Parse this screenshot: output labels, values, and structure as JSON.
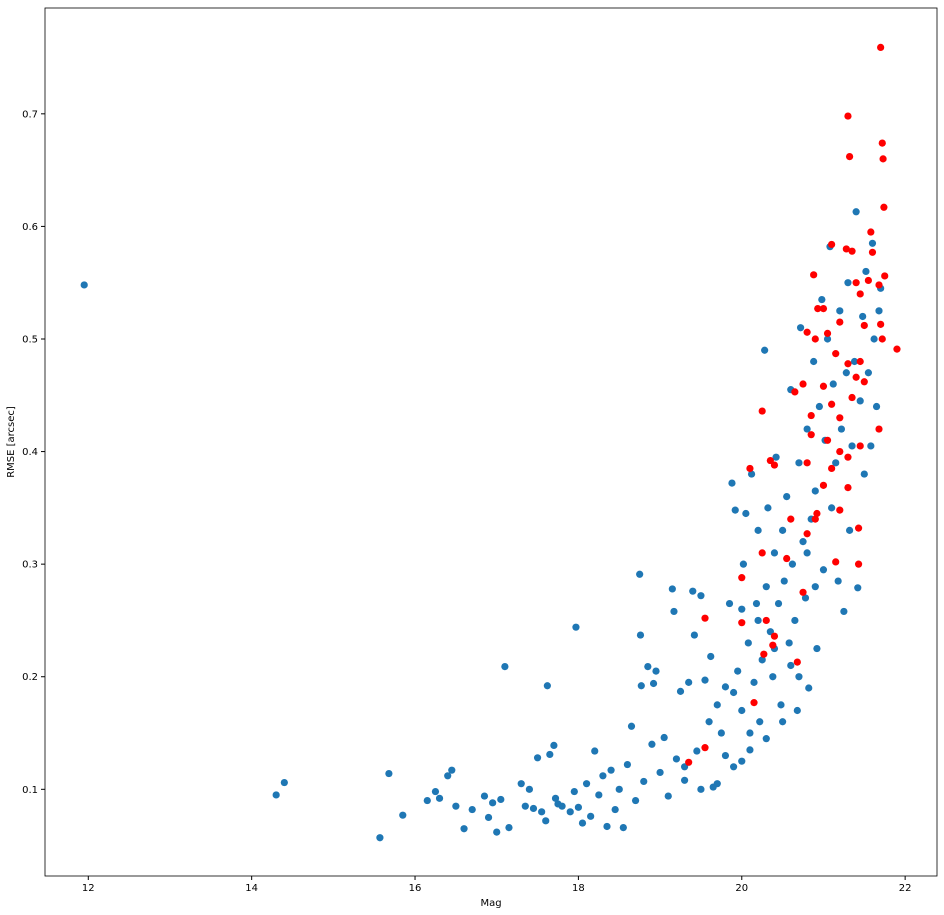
{
  "chart_data": {
    "type": "scatter",
    "xlabel": "Mag",
    "ylabel": "RMSE [arcsec]",
    "xlim": [
      11.47,
      22.39
    ],
    "ylim": [
      0.023,
      0.794
    ],
    "xticks": [
      12,
      14,
      16,
      18,
      20,
      22
    ],
    "yticks": [
      0.1,
      0.2,
      0.3,
      0.4,
      0.5,
      0.6,
      0.7
    ],
    "series": [
      {
        "color": "#1f77b4",
        "x": [
          11.95,
          14.3,
          14.4,
          15.57,
          15.68,
          15.85,
          16.15,
          16.25,
          16.3,
          16.4,
          16.45,
          16.5,
          16.6,
          16.7,
          16.85,
          16.9,
          16.95,
          17.0,
          17.05,
          17.1,
          17.15,
          17.3,
          17.35,
          17.4,
          17.45,
          17.5,
          17.55,
          17.6,
          17.62,
          17.65,
          17.7,
          17.72,
          17.75,
          17.8,
          17.9,
          17.95,
          17.97,
          18.0,
          18.05,
          18.1,
          18.15,
          18.2,
          18.25,
          18.3,
          18.35,
          18.4,
          18.45,
          18.5,
          18.55,
          18.6,
          18.65,
          18.7,
          18.75,
          18.76,
          18.77,
          18.8,
          18.85,
          18.9,
          18.92,
          18.95,
          19.0,
          19.05,
          19.1,
          19.15,
          19.17,
          19.2,
          19.25,
          19.3,
          19.35,
          19.4,
          19.42,
          19.45,
          19.5,
          19.55,
          19.6,
          19.62,
          19.65,
          19.7,
          19.75,
          19.8,
          19.85,
          19.88,
          19.9,
          19.92,
          19.95,
          20.0,
          20.02,
          20.05,
          20.08,
          20.1,
          20.12,
          20.15,
          20.18,
          20.2,
          20.22,
          20.25,
          20.28,
          20.3,
          20.32,
          20.35,
          20.38,
          20.4,
          20.42,
          20.45,
          20.48,
          20.5,
          20.52,
          20.55,
          20.58,
          20.6,
          20.62,
          20.65,
          20.68,
          20.7,
          20.72,
          20.75,
          20.78,
          20.8,
          20.82,
          20.85,
          20.88,
          20.9,
          20.92,
          20.95,
          20.98,
          21.0,
          21.02,
          21.05,
          21.08,
          21.1,
          21.12,
          21.15,
          21.18,
          21.2,
          21.22,
          21.25,
          21.28,
          21.3,
          21.32,
          21.35,
          21.38,
          21.4,
          21.42,
          21.45,
          21.48,
          21.5,
          21.52,
          21.55,
          21.58,
          21.6,
          21.62,
          21.65,
          21.68,
          21.7,
          19.8,
          19.9,
          20.0,
          20.1,
          19.7,
          19.5,
          19.3,
          20.3,
          20.5,
          20.7,
          20.6,
          20.4,
          20.2,
          20.0,
          20.9,
          20.8
        ],
        "y": [
          0.548,
          0.095,
          0.106,
          0.057,
          0.114,
          0.077,
          0.09,
          0.098,
          0.092,
          0.112,
          0.117,
          0.085,
          0.065,
          0.082,
          0.094,
          0.075,
          0.088,
          0.062,
          0.091,
          0.209,
          0.066,
          0.105,
          0.085,
          0.1,
          0.083,
          0.128,
          0.08,
          0.072,
          0.192,
          0.131,
          0.139,
          0.092,
          0.087,
          0.085,
          0.08,
          0.098,
          0.244,
          0.084,
          0.07,
          0.105,
          0.076,
          0.134,
          0.095,
          0.112,
          0.067,
          0.117,
          0.082,
          0.1,
          0.066,
          0.122,
          0.156,
          0.09,
          0.291,
          0.237,
          0.192,
          0.107,
          0.209,
          0.14,
          0.194,
          0.205,
          0.115,
          0.146,
          0.094,
          0.278,
          0.258,
          0.127,
          0.187,
          0.108,
          0.195,
          0.276,
          0.237,
          0.134,
          0.272,
          0.197,
          0.16,
          0.218,
          0.102,
          0.175,
          0.15,
          0.191,
          0.265,
          0.372,
          0.186,
          0.348,
          0.205,
          0.17,
          0.3,
          0.345,
          0.23,
          0.15,
          0.38,
          0.195,
          0.265,
          0.33,
          0.16,
          0.215,
          0.49,
          0.28,
          0.35,
          0.24,
          0.2,
          0.31,
          0.395,
          0.265,
          0.175,
          0.33,
          0.285,
          0.36,
          0.23,
          0.455,
          0.3,
          0.25,
          0.17,
          0.39,
          0.51,
          0.32,
          0.27,
          0.42,
          0.19,
          0.34,
          0.48,
          0.365,
          0.225,
          0.44,
          0.535,
          0.295,
          0.41,
          0.5,
          0.582,
          0.35,
          0.46,
          0.39,
          0.285,
          0.525,
          0.42,
          0.258,
          0.47,
          0.55,
          0.33,
          0.405,
          0.48,
          0.613,
          0.279,
          0.445,
          0.52,
          0.38,
          0.56,
          0.47,
          0.405,
          0.585,
          0.5,
          0.44,
          0.525,
          0.545,
          0.13,
          0.12,
          0.125,
          0.135,
          0.105,
          0.1,
          0.12,
          0.145,
          0.16,
          0.2,
          0.21,
          0.225,
          0.25,
          0.26,
          0.28,
          0.31
        ]
      },
      {
        "color": "#ff0000",
        "x": [
          21.7,
          21.3,
          21.72,
          21.32,
          21.73,
          21.74,
          21.1,
          21.28,
          21.35,
          21.58,
          21.6,
          20.88,
          21.75,
          21.4,
          21.55,
          21.68,
          20.93,
          21.0,
          21.45,
          21.5,
          21.2,
          21.7,
          21.9,
          21.72,
          20.8,
          21.05,
          21.15,
          21.3,
          21.4,
          21.5,
          20.9,
          20.75,
          21.0,
          21.1,
          21.2,
          21.35,
          21.45,
          20.65,
          20.85,
          20.25,
          21.68,
          21.05,
          20.85,
          21.2,
          21.3,
          21.45,
          20.35,
          20.4,
          20.8,
          21.1,
          20.1,
          21.0,
          21.3,
          21.2,
          20.92,
          21.43,
          20.8,
          20.9,
          21.15,
          21.43,
          20.6,
          20.55,
          20.25,
          20.75,
          20.0,
          19.55,
          20.0,
          20.3,
          20.4,
          20.38,
          20.27,
          20.68,
          20.15,
          19.55,
          19.35
        ],
        "y": [
          0.759,
          0.698,
          0.674,
          0.662,
          0.66,
          0.617,
          0.584,
          0.58,
          0.578,
          0.595,
          0.577,
          0.557,
          0.556,
          0.55,
          0.552,
          0.548,
          0.527,
          0.527,
          0.54,
          0.512,
          0.515,
          0.513,
          0.491,
          0.5,
          0.506,
          0.505,
          0.487,
          0.478,
          0.466,
          0.462,
          0.5,
          0.46,
          0.458,
          0.442,
          0.43,
          0.448,
          0.48,
          0.453,
          0.432,
          0.436,
          0.42,
          0.41,
          0.415,
          0.4,
          0.395,
          0.405,
          0.392,
          0.388,
          0.39,
          0.385,
          0.385,
          0.37,
          0.368,
          0.348,
          0.345,
          0.332,
          0.327,
          0.34,
          0.302,
          0.3,
          0.34,
          0.305,
          0.31,
          0.275,
          0.288,
          0.252,
          0.248,
          0.25,
          0.236,
          0.228,
          0.22,
          0.213,
          0.177,
          0.137,
          0.124
        ]
      }
    ]
  }
}
